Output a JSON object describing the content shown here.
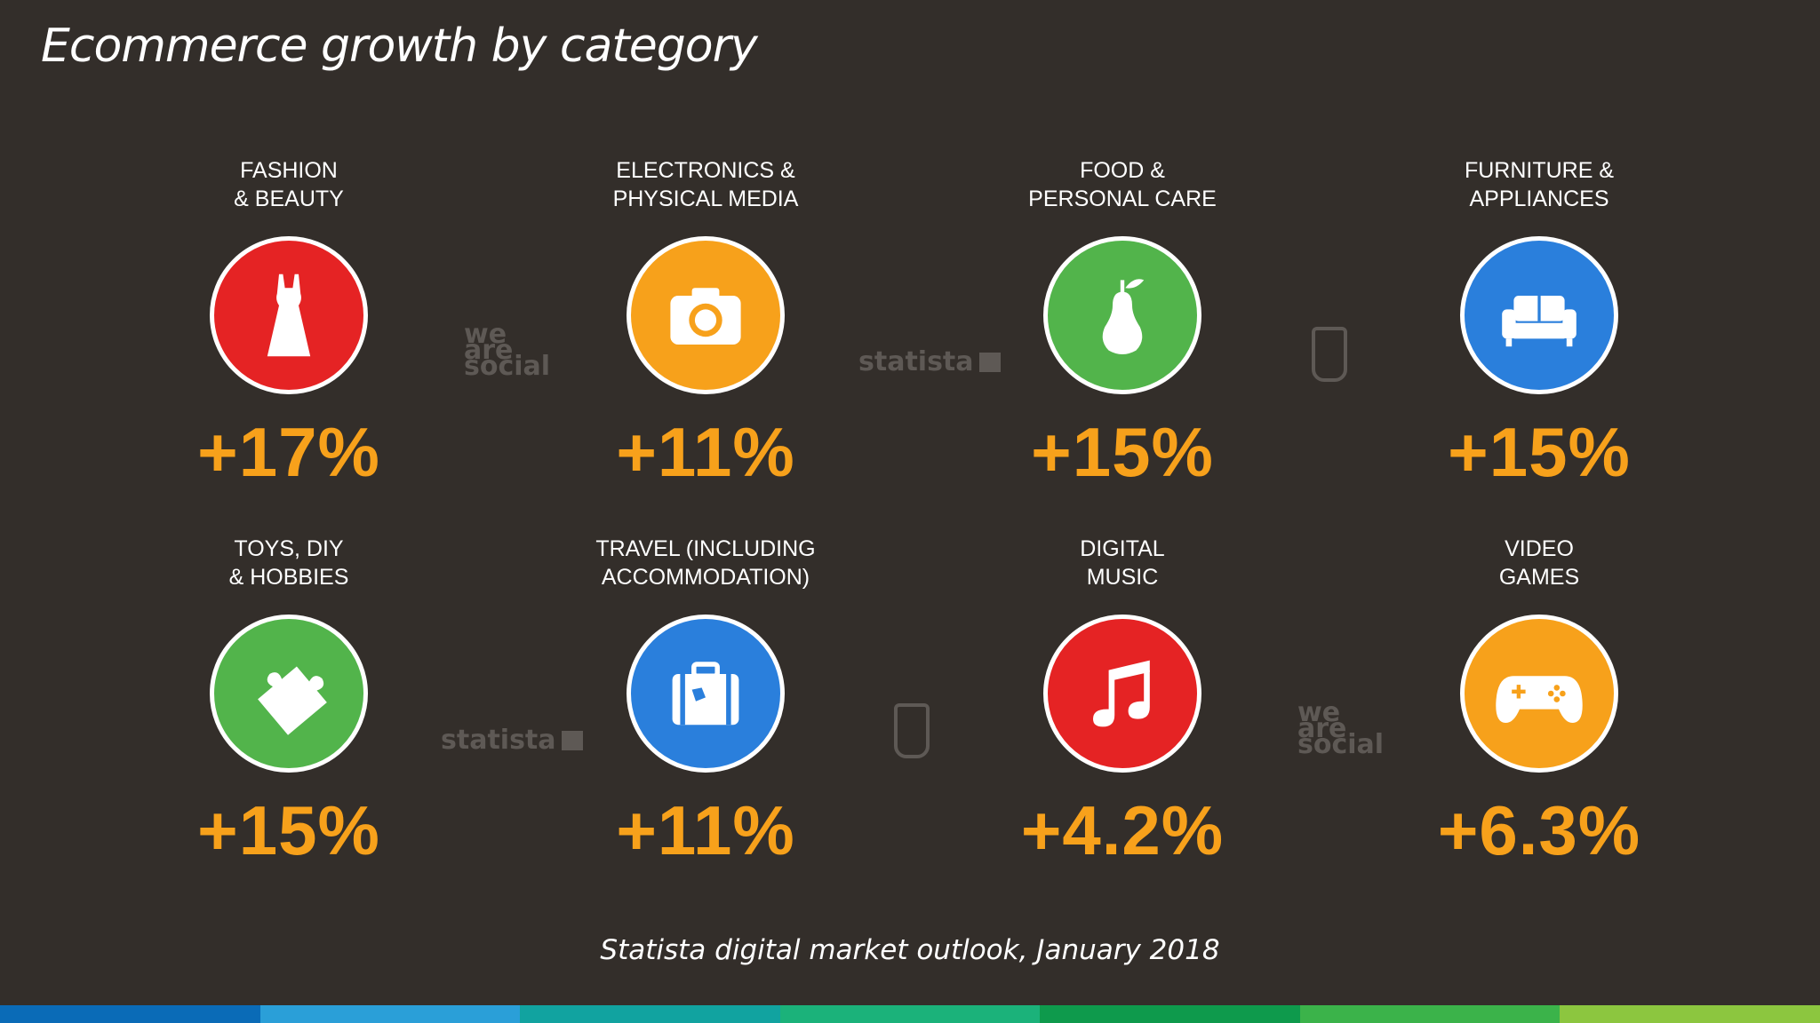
{
  "title": "Ecommerce growth by category",
  "source": "Statista digital market outlook, January 2018",
  "categories": [
    {
      "label": "FASHION\n& BEAUTY",
      "value": "+17%",
      "icon": "dress-icon",
      "color": "#e52324"
    },
    {
      "label": "ELECTRONICS &\nPHYSICAL MEDIA",
      "value": "+11%",
      "icon": "camera-icon",
      "color": "#f7a11b"
    },
    {
      "label": "FOOD &\nPERSONAL CARE",
      "value": "+15%",
      "icon": "pear-icon",
      "color": "#52b44b"
    },
    {
      "label": "FURNITURE &\nAPPLIANCES",
      "value": "+15%",
      "icon": "sofa-icon",
      "color": "#2a7fdc"
    },
    {
      "label": "TOYS, DIY\n& HOBBIES",
      "value": "+15%",
      "icon": "puzzle-icon",
      "color": "#52b44b"
    },
    {
      "label": "TRAVEL (INCLUDING\nACCOMMODATION)",
      "value": "+11%",
      "icon": "suitcase-icon",
      "color": "#2a7fdc"
    },
    {
      "label": "DIGITAL\nMUSIC",
      "value": "+4.2%",
      "icon": "music-note-icon",
      "color": "#e52324"
    },
    {
      "label": "VIDEO\nGAMES",
      "value": "+6.3%",
      "icon": "gamepad-icon",
      "color": "#f7a11b"
    }
  ],
  "watermarks": {
    "we_are_social": [
      "we",
      "are",
      "social"
    ],
    "statista": "statista"
  },
  "stripe_colors": [
    "#0a6bb7",
    "#2a9fd8",
    "#11a3a0",
    "#1bb27a",
    "#0e9a4c",
    "#3bb34a",
    "#8cc63f"
  ]
}
